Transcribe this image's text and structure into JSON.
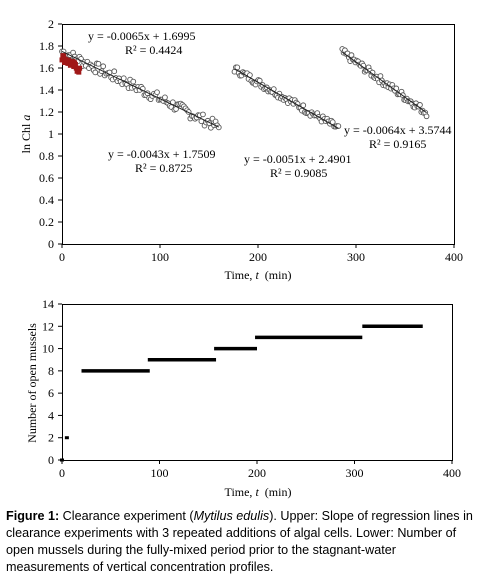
{
  "chart_data": [
    {
      "type": "scatter",
      "xlabel_prefix": "Time, ",
      "xlabel_var": "t",
      "xlabel_unit": "(min)",
      "ylabel_prefix": "ln Chl ",
      "ylabel_var": "a",
      "xlim": [
        0,
        400
      ],
      "ylim": [
        0,
        2
      ],
      "xticks": [
        0,
        100,
        200,
        300,
        400
      ],
      "yticks": [
        0,
        0.2,
        0.4,
        0.6,
        0.8,
        1,
        1.2,
        1.4,
        1.6,
        1.8,
        2
      ],
      "ytick_labels": [
        "0",
        "0.2",
        "0.4",
        "0.6",
        "0.8",
        "1",
        "1.2",
        "1.4",
        "1.6",
        "1.8",
        "2"
      ],
      "series": [
        {
          "marker": "square",
          "color": "#a01818",
          "x_start": 0,
          "x_end": 18,
          "slope": -0.0065,
          "intercept": 1.6995,
          "n": 22,
          "noise": 0.035
        },
        {
          "marker": "circle",
          "color": "#555555",
          "x_start": 0,
          "x_end": 160,
          "slope": -0.0043,
          "intercept": 1.7509,
          "n": 100,
          "noise": 0.05
        },
        {
          "marker": "circle",
          "color": "#555555",
          "x_start": 176,
          "x_end": 282,
          "slope": -0.0051,
          "intercept": 2.4901,
          "n": 75,
          "noise": 0.035
        },
        {
          "marker": "circle",
          "color": "#555555",
          "x_start": 286,
          "x_end": 372,
          "slope": -0.0064,
          "intercept": 3.5744,
          "n": 65,
          "noise": 0.035
        }
      ],
      "annotations": [
        {
          "eq": "y = -0.0065x + 1.6995",
          "r2": "R² = 0.4424"
        },
        {
          "eq": "y = -0.0043x + 1.7509",
          "r2": "R² = 0.8725"
        },
        {
          "eq": "y = -0.0051x + 2.4901",
          "r2": "R² = 0.9085"
        },
        {
          "eq": "y = -0.0064x + 3.5744",
          "r2": "R² = 0.9165"
        }
      ]
    },
    {
      "type": "line",
      "xlabel_prefix": "Time, ",
      "xlabel_var": "t",
      "xlabel_unit": "(min)",
      "ylabel": "Number of open mussels",
      "xlim": [
        0,
        400
      ],
      "ylim": [
        0,
        14
      ],
      "xticks": [
        0,
        100,
        200,
        300,
        400
      ],
      "yticks": [
        0,
        2,
        4,
        6,
        8,
        10,
        12,
        14
      ],
      "points": [
        [
          0,
          0
        ],
        [
          5,
          2
        ]
      ],
      "steps": [
        {
          "x_start": 20,
          "x_end": 90,
          "y": 8
        },
        {
          "x_start": 88,
          "x_end": 158,
          "y": 9
        },
        {
          "x_start": 156,
          "x_end": 200,
          "y": 10
        },
        {
          "x_start": 198,
          "x_end": 308,
          "y": 11
        },
        {
          "x_start": 308,
          "x_end": 370,
          "y": 12
        }
      ]
    }
  ],
  "caption": {
    "label": "Figure 1:",
    "t1": " Clearance experiment (",
    "species": "Mytilus edulis",
    "t2": "). Upper: Slope of regression lines in clearance experiments with 3 repeated additions of algal cells. Lower: Number of open mussels during the fully-mixed period prior to the stagnant-water measurements of vertical concentration profiles."
  }
}
